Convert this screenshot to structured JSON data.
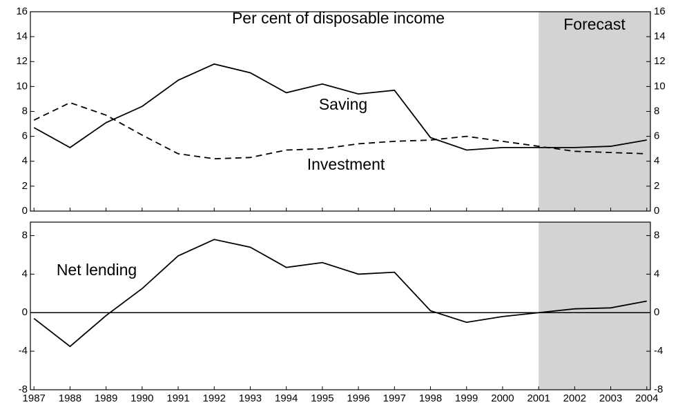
{
  "chart_data": [
    {
      "type": "line",
      "title": "Per cent of disposable income",
      "x": [
        1987,
        1988,
        1989,
        1990,
        1991,
        1992,
        1993,
        1994,
        1995,
        1996,
        1997,
        1998,
        1999,
        2000,
        2001,
        2002,
        2003,
        2004
      ],
      "xlim": [
        1986.9,
        2004.1
      ],
      "ylim": [
        0,
        16
      ],
      "yticks": [
        0,
        2,
        4,
        6,
        8,
        10,
        12,
        14,
        16
      ],
      "forecast": {
        "label": "Forecast",
        "from": 2001
      },
      "annotations": [
        "Saving",
        "Investment"
      ],
      "series": [
        {
          "name": "Saving",
          "color": "#000000",
          "style": "solid",
          "values": [
            6.7,
            5.1,
            7.1,
            8.4,
            10.5,
            11.8,
            11.1,
            9.5,
            10.2,
            9.4,
            9.7,
            5.9,
            4.9,
            5.1,
            5.1,
            5.1,
            5.2,
            5.7
          ]
        },
        {
          "name": "Investment",
          "color": "#000000",
          "style": "dashed",
          "values": [
            7.3,
            8.7,
            7.7,
            6.1,
            4.6,
            4.2,
            4.3,
            4.9,
            5.0,
            5.4,
            5.6,
            5.7,
            6.0,
            5.6,
            5.2,
            4.8,
            4.7,
            4.6
          ]
        }
      ]
    },
    {
      "type": "line",
      "x": [
        1987,
        1988,
        1989,
        1990,
        1991,
        1992,
        1993,
        1994,
        1995,
        1996,
        1997,
        1998,
        1999,
        2000,
        2001,
        2002,
        2003,
        2004
      ],
      "xlim": [
        1986.9,
        2004.1
      ],
      "xticks": [
        1987,
        1988,
        1989,
        1990,
        1991,
        1992,
        1993,
        1994,
        1995,
        1996,
        1997,
        1998,
        1999,
        2000,
        2001,
        2002,
        2003,
        2004
      ],
      "ylim": [
        -8,
        9.4
      ],
      "yticks": [
        -8,
        -4,
        0,
        4,
        8
      ],
      "annotations": [
        "Net lending"
      ],
      "series": [
        {
          "name": "Net lending",
          "color": "#000000",
          "style": "solid",
          "values": [
            -0.6,
            -3.5,
            -0.3,
            2.5,
            5.9,
            7.6,
            6.8,
            4.7,
            5.2,
            4.0,
            4.2,
            0.2,
            -1.0,
            -0.4,
            0.0,
            0.4,
            0.5,
            1.2
          ]
        }
      ]
    }
  ]
}
